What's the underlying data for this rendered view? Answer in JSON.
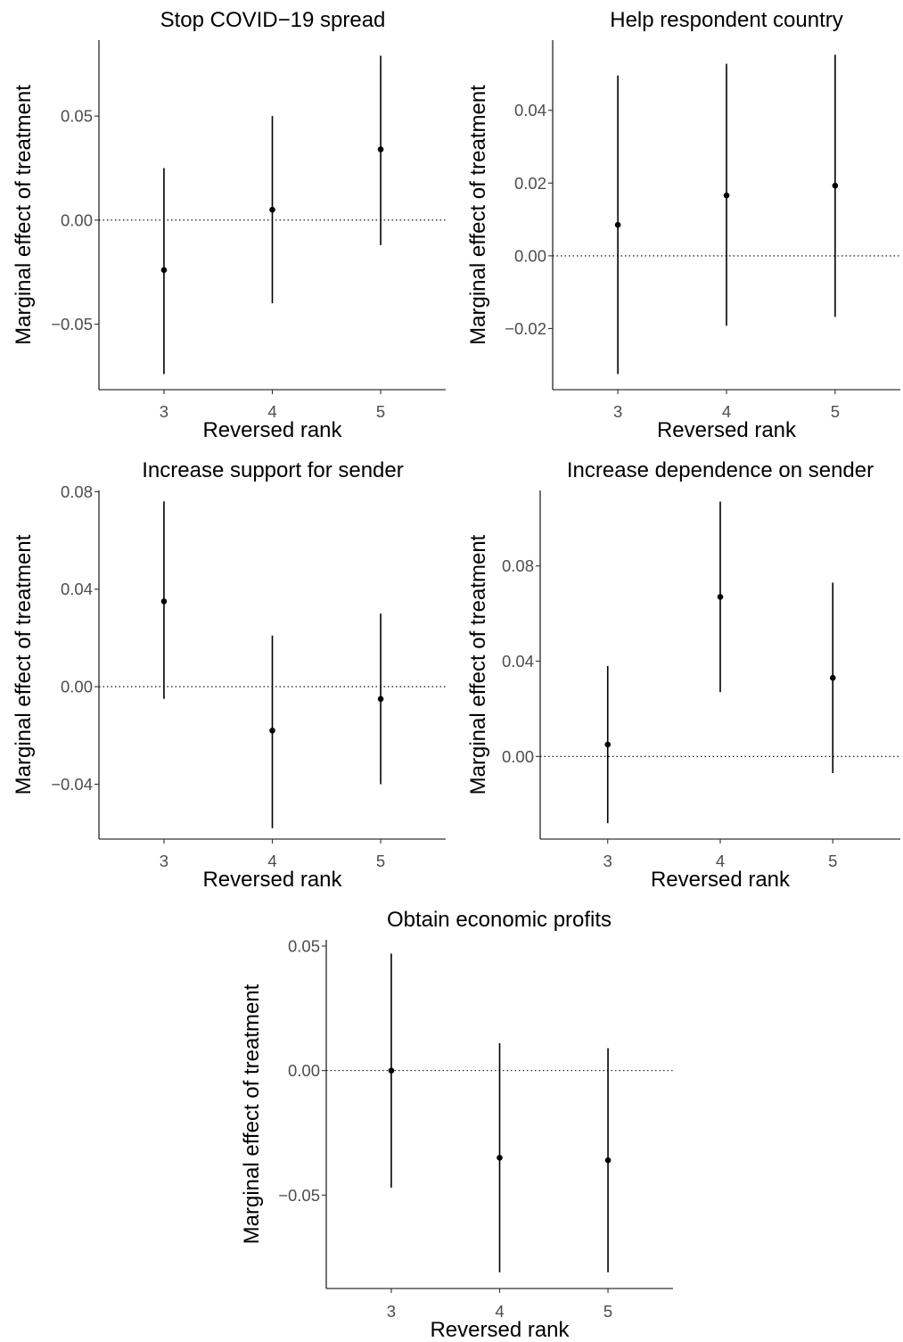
{
  "chart_data": [
    {
      "type": "errorbar",
      "title": "Stop COVID−19 spread",
      "xlabel": "Reversed rank",
      "ylabel": "Marginal effect of treatment",
      "categories": [
        "3",
        "4",
        "5"
      ],
      "estimates": [
        -0.024,
        0.005,
        0.034
      ],
      "lower": [
        -0.074,
        -0.04,
        -0.012
      ],
      "upper": [
        0.025,
        0.05,
        0.079
      ],
      "yticks": [
        -0.05,
        0.0,
        0.05
      ],
      "ytick_labels": [
        "−0.05",
        "0.00",
        "0.05"
      ],
      "ylim": [
        -0.0815,
        0.0865
      ],
      "reference_line": 0,
      "grid": false
    },
    {
      "type": "errorbar",
      "title": "Help respondent country",
      "xlabel": "Reversed rank",
      "ylabel": "Marginal effect of treatment",
      "categories": [
        "3",
        "4",
        "5"
      ],
      "estimates": [
        0.0085,
        0.0166,
        0.0193
      ],
      "lower": [
        -0.0325,
        -0.0192,
        -0.0168
      ],
      "upper": [
        0.0496,
        0.0528,
        0.0553
      ],
      "yticks": [
        -0.02,
        0.0,
        0.02,
        0.04
      ],
      "ytick_labels": [
        "−0.02",
        "0.00",
        "0.02",
        "0.04"
      ],
      "ylim": [
        -0.0368,
        0.0593
      ],
      "reference_line": 0,
      "grid": false
    },
    {
      "type": "errorbar",
      "title": "Increase support for sender",
      "xlabel": "Reversed rank",
      "ylabel": "Marginal effect of treatment",
      "categories": [
        "3",
        "4",
        "5"
      ],
      "estimates": [
        0.035,
        -0.018,
        -0.005
      ],
      "lower": [
        -0.005,
        -0.058,
        -0.04
      ],
      "upper": [
        0.076,
        0.021,
        0.03
      ],
      "yticks": [
        -0.04,
        0.0,
        0.04,
        0.08
      ],
      "ytick_labels": [
        "−0.04",
        "0.00",
        "0.04",
        "0.08"
      ],
      "ylim": [
        -0.0625,
        0.0805
      ],
      "reference_line": 0,
      "grid": false
    },
    {
      "type": "errorbar",
      "title": "Increase dependence on sender",
      "xlabel": "Reversed rank",
      "ylabel": "Marginal effect of treatment",
      "categories": [
        "3",
        "4",
        "5"
      ],
      "estimates": [
        0.005,
        0.067,
        0.033
      ],
      "lower": [
        -0.028,
        0.027,
        -0.007
      ],
      "upper": [
        0.038,
        0.107,
        0.073
      ],
      "yticks": [
        0.0,
        0.04,
        0.08
      ],
      "ytick_labels": [
        "0.00",
        "0.04",
        "0.08"
      ],
      "ylim": [
        -0.0347,
        0.1117
      ],
      "reference_line": 0,
      "grid": false
    },
    {
      "type": "errorbar",
      "title": "Obtain economic profits",
      "xlabel": "Reversed rank",
      "ylabel": "Marginal effect of treatment",
      "categories": [
        "3",
        "4",
        "5"
      ],
      "estimates": [
        0.0,
        -0.035,
        -0.036
      ],
      "lower": [
        -0.047,
        -0.081,
        -0.081
      ],
      "upper": [
        0.047,
        0.011,
        0.009
      ],
      "yticks": [
        -0.05,
        0.0,
        0.05
      ],
      "ytick_labels": [
        "−0.05",
        "0.00",
        "0.05"
      ],
      "ylim": [
        -0.0875,
        0.0525
      ],
      "reference_line": 0,
      "grid": false
    }
  ]
}
